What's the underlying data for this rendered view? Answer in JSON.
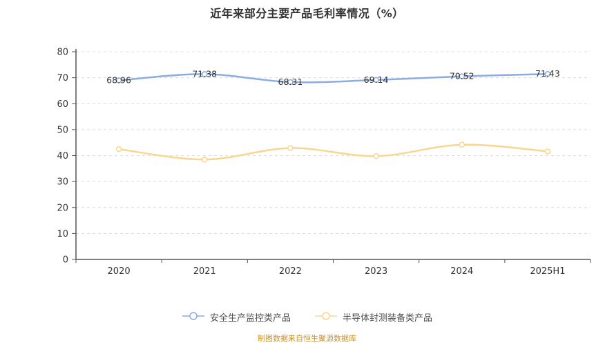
{
  "title": "近年来部分主要产品毛利率情况（%）",
  "footer": {
    "source_note": "制图数据来自恒生聚源数据库",
    "color": "#c8922c"
  },
  "colors": {
    "background": "#ffffff",
    "axis": "#555555",
    "gridline": "#dcdcdc",
    "tick_label": "#333333",
    "data_label": "#333333",
    "legend_text": "#4d4d4d"
  },
  "chart_data": {
    "type": "line",
    "title": "近年来部分主要产品毛利率情况（%）",
    "categories": [
      "2020",
      "2021",
      "2022",
      "2023",
      "2024",
      "2025H1"
    ],
    "series": [
      {
        "name": "安全生产监控类产品",
        "color": "#8cacdf",
        "values": [
          68.96,
          71.38,
          68.31,
          69.14,
          70.52,
          71.43
        ],
        "data_labels_visible": true
      },
      {
        "name": "半导体封测装备类产品",
        "color": "#fad68c",
        "values": [
          42.5,
          38.5,
          42.9,
          39.8,
          44.2,
          41.6
        ],
        "data_labels_visible": false
      }
    ],
    "xlabel": "",
    "ylabel": "",
    "ylim": [
      0,
      80
    ],
    "ytick_step": 10,
    "grid": "horizontal-dashed",
    "line_style": "smooth",
    "marker": "hollow-circle",
    "legend_position": "bottom"
  }
}
